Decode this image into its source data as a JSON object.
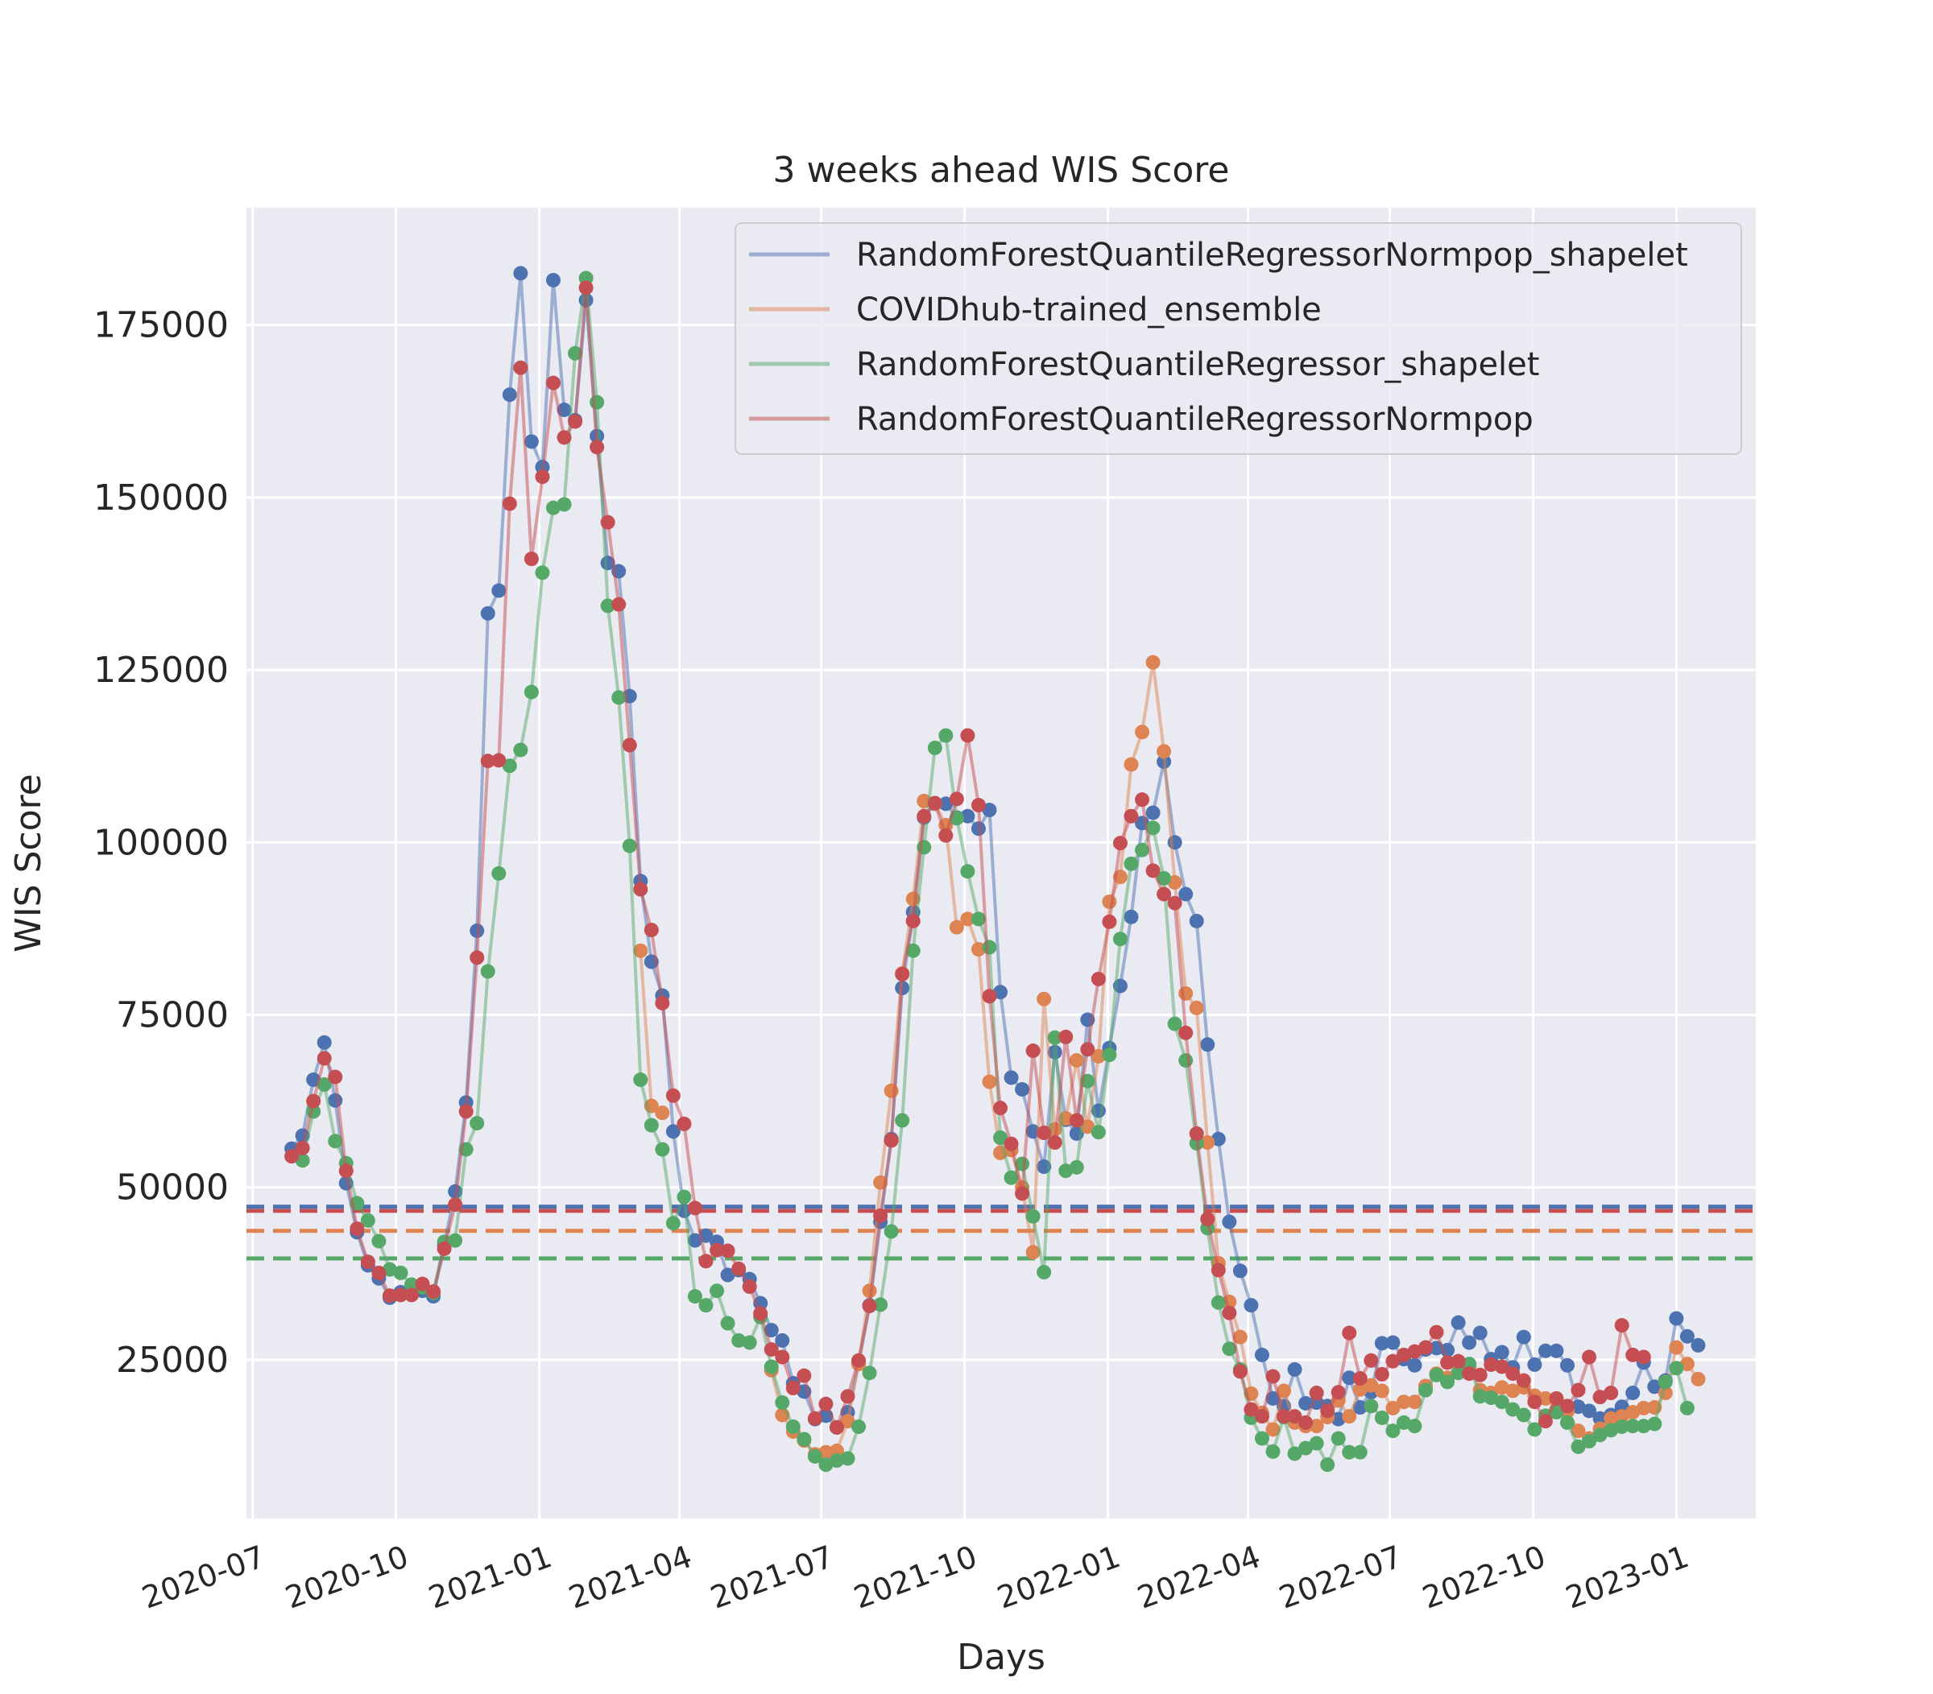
{
  "chart_data": {
    "type": "line",
    "title": "3 weeks ahead WIS Score",
    "xlabel": "Days",
    "ylabel": "WIS Score",
    "x_ticks": [
      "2020-07",
      "2020-10",
      "2021-01",
      "2021-04",
      "2021-07",
      "2021-10",
      "2022-01",
      "2022-04",
      "2022-07",
      "2022-10",
      "2023-01"
    ],
    "y_ticks": [
      "25000",
      "50000",
      "75000",
      "100000",
      "125000",
      "150000",
      "175000"
    ],
    "xlim": [
      "2020-06-27",
      "2023-02-21"
    ],
    "ylim": [
      2000,
      192000
    ],
    "grid": true,
    "legend_position": "top-right",
    "style": "seaborn darkgrid",
    "colors": {
      "background": "#eaeaf2",
      "grid": "#ffffff"
    },
    "x_start": "2020-07-26",
    "x_step_days": 7,
    "series": [
      {
        "name": "RandomForestQuantileRegressorNormpop_shapelet",
        "color": "#4c72b0",
        "mean": 47200,
        "values": [
          55600,
          57500,
          65600,
          71000,
          62600,
          50600,
          43500,
          38700,
          36800,
          34000,
          34800,
          34800,
          35000,
          34200,
          41700,
          49400,
          62300,
          87200,
          133200,
          136500,
          164900,
          182500,
          158100,
          154400,
          181500,
          162700,
          161200,
          178600,
          158900,
          140500,
          139300,
          121200,
          94400,
          82700,
          77800,
          58100,
          46600,
          42300,
          43000,
          42100,
          37300,
          38000,
          36700,
          33200,
          29300,
          27800,
          21600,
          20400,
          16400,
          16900,
          15200,
          17400,
          24400,
          32900,
          45000,
          57000,
          78900,
          89900,
          103600,
          105600,
          105600,
          103600,
          103800,
          102000,
          104700,
          78300,
          65900,
          64200,
          58100,
          53000,
          69600,
          59800,
          57800,
          74300,
          61100,
          70200,
          79200,
          89200,
          102800,
          104300,
          111700,
          100000,
          92500,
          88600,
          70700,
          57000,
          45000,
          37900,
          32900,
          25700,
          19400,
          18300,
          23600,
          18700,
          18800,
          18300,
          16400,
          22400,
          18100,
          20300,
          27400,
          27500,
          25100,
          24200,
          26500,
          26700,
          26400,
          30400,
          27500,
          28900,
          25100,
          26100,
          23900,
          28300,
          24300,
          26300,
          26300,
          24200,
          18200,
          17600,
          16500,
          17000,
          18200,
          20200,
          24600,
          21100,
          22000,
          31000,
          28400,
          27100
        ]
      },
      {
        "name": "COVIDhub-trained_ensemble",
        "color": "#dd8452",
        "mean": 43700,
        "values": [
          null,
          null,
          null,
          null,
          null,
          null,
          null,
          null,
          null,
          null,
          null,
          null,
          null,
          null,
          null,
          null,
          null,
          null,
          null,
          null,
          null,
          null,
          null,
          null,
          null,
          null,
          null,
          null,
          null,
          null,
          null,
          null,
          null,
          null,
          null,
          null,
          null,
          null,
          null,
          null,
          null,
          null,
          null,
          null,
          null,
          null,
          null,
          null,
          null,
          null,
          null,
          null,
          null,
          null,
          null,
          null,
          null,
          null,
          null,
          null,
          null,
          null,
          null,
          null,
          null,
          null,
          null,
          null,
          null,
          null,
          null,
          null,
          null,
          null,
          null,
          null,
          null,
          null,
          null,
          null,
          null,
          null,
          null,
          null,
          null,
          null,
          null,
          null,
          null,
          null,
          null,
          null,
          null,
          null,
          null,
          null,
          null,
          null,
          null,
          null,
          null,
          null,
          null,
          null,
          null,
          null,
          null,
          null,
          null,
          null,
          null,
          null,
          null,
          null,
          null,
          null,
          null,
          null,
          null,
          null,
          null,
          null,
          null,
          null,
          null,
          null,
          null,
          null,
          null,
          null
        ],
        "values_b": [
          null,
          null,
          null,
          null,
          null,
          null,
          null,
          null,
          null,
          null,
          null,
          null,
          null,
          null,
          null,
          null,
          null,
          null,
          null,
          null,
          null,
          null,
          null,
          null,
          null,
          null,
          null,
          null,
          null,
          null,
          null,
          null,
          84300,
          61800,
          60800,
          null,
          null,
          null,
          null,
          null,
          null,
          null,
          null,
          null,
          23500,
          17000,
          14600,
          13300,
          11300,
          11600,
          11800,
          16100,
          24400,
          35000,
          50700,
          64000,
          81000,
          91800,
          106000,
          105600,
          102500,
          87700,
          88900,
          84500,
          65300,
          55000,
          55400,
          50000,
          40600,
          77300,
          58400,
          60000,
          68400,
          58800,
          69000,
          91400,
          95000,
          111300,
          116000,
          126100,
          113200,
          94200,
          78100,
          76000,
          56500,
          39000,
          33400,
          28300,
          20100,
          17300,
          14900,
          20500,
          15900,
          15400,
          15400,
          16700,
          19100,
          16800,
          20700,
          21300,
          20500,
          18000,
          18900,
          18900,
          21200,
          23000,
          22400,
          23200,
          24000,
          20600,
          20200,
          21000,
          20500,
          21000,
          19800,
          19400,
          17800,
          17500,
          14700,
          13600,
          15000,
          16500,
          16800,
          17400,
          18000,
          18100,
          20200,
          26800,
          24400,
          22200
        ],
        "comment_start_index": 0
      },
      {
        "name": "RandomForestQuantileRegressor_shapelet",
        "color": "#55a868",
        "mean": 39700,
        "values": [
          null,
          53900,
          61000,
          64900,
          56700,
          53500,
          47700,
          45200,
          42200,
          38100,
          37600,
          35900,
          35500,
          34700,
          42100,
          42300,
          55500,
          59300,
          81300,
          95500,
          111100,
          113400,
          121800,
          139100,
          148500,
          149000,
          170900,
          181800,
          163800,
          134300,
          121000,
          99500,
          65600,
          59000,
          55500,
          44800,
          48600,
          34200,
          32900,
          35000,
          30300,
          27800,
          27500,
          31200,
          24000,
          18800,
          15300,
          13500,
          11000,
          9800,
          10400,
          10700,
          15300,
          23100,
          33000,
          43600,
          59700,
          84300,
          99300,
          113700,
          115500,
          103500,
          95800,
          88900,
          84800,
          57200,
          51400,
          53400,
          45800,
          37700,
          71700,
          52400,
          52900,
          65400,
          58000,
          69200,
          86000,
          96900,
          98900,
          102100,
          94800,
          73700,
          68400,
          56400,
          44100,
          33300,
          26600,
          23600,
          16600,
          13600,
          11700,
          16700,
          11400,
          12200,
          12900,
          9800,
          13600,
          11600,
          11600,
          18300,
          16600,
          14700,
          15900,
          15400,
          20600,
          22800,
          21800,
          23100,
          24400,
          19700,
          19500,
          18900,
          17800,
          17000,
          14900,
          16900,
          17400,
          15900,
          12400,
          13200,
          14100,
          14800,
          15300,
          15400,
          15400,
          15700,
          21800,
          23800,
          18000
        ]
      },
      {
        "name": "RandomForestQuantileRegressorNormpop",
        "color": "#c44e52",
        "mean": 46600,
        "values": [
          54500,
          55700,
          62500,
          68700,
          66000,
          52400,
          44000,
          39200,
          37600,
          34300,
          34400,
          34400,
          36000,
          34900,
          41100,
          47500,
          61000,
          83300,
          111800,
          111900,
          149100,
          168800,
          141100,
          153000,
          166600,
          158700,
          161000,
          180400,
          157300,
          146400,
          134500,
          114100,
          93200,
          87300,
          76700,
          63300,
          59200,
          47000,
          39300,
          40900,
          40800,
          38200,
          35600,
          31700,
          26500,
          25400,
          20900,
          22700,
          16500,
          18600,
          15200,
          19700,
          24900,
          32800,
          45900,
          56800,
          80900,
          88600,
          103800,
          105700,
          101000,
          106300,
          115500,
          105400,
          77700,
          61500,
          56300,
          49100,
          69800,
          57900,
          56500,
          71800,
          59700,
          70000,
          80200,
          88500,
          99900,
          103800,
          106200,
          95900,
          92500,
          91200,
          72400,
          57800,
          45400,
          38000,
          31800,
          23300,
          17800,
          16800,
          22600,
          16800,
          16800,
          15900,
          20200,
          17600,
          20300,
          28900,
          22300,
          24900,
          22900,
          24800,
          25700,
          26200,
          26800,
          29000,
          24600,
          24800,
          23000,
          22800,
          24300,
          24000,
          23000,
          22000,
          18900,
          16100,
          19400,
          18300,
          20600,
          25400,
          19600,
          20200,
          30000,
          25700,
          25400
        ]
      }
    ]
  }
}
